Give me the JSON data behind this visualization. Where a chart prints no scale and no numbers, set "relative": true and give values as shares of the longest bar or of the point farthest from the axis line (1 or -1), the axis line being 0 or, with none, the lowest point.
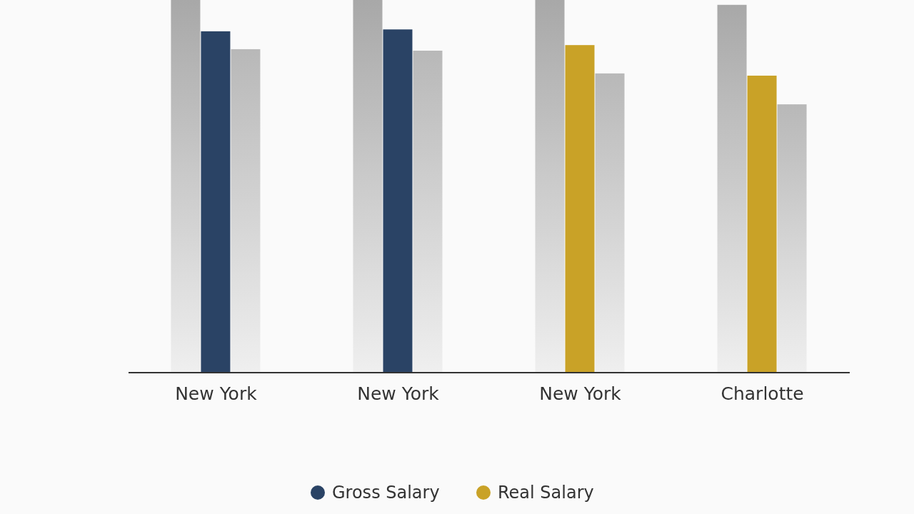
{
  "chart_data": {
    "type": "bar",
    "relative": true,
    "categories": [
      "New York",
      "New York",
      "New York",
      "Charlotte"
    ],
    "series": [
      {
        "color": "#a8a8a8",
        "values": [
          1,
          1,
          1,
          0.987
        ]
      },
      {
        "name": "Gross Salary",
        "color": "#2a4365",
        "values": [
          0.916,
          0.921,
          null,
          null
        ]
      },
      {
        "name": "Real Salary",
        "color": "#c9a227",
        "values": [
          null,
          null,
          0.879,
          0.797
        ]
      },
      {
        "color": "#b8b8b8",
        "values": [
          0.868,
          0.864,
          0.803,
          0.72
        ]
      }
    ],
    "legend": "bottom"
  }
}
